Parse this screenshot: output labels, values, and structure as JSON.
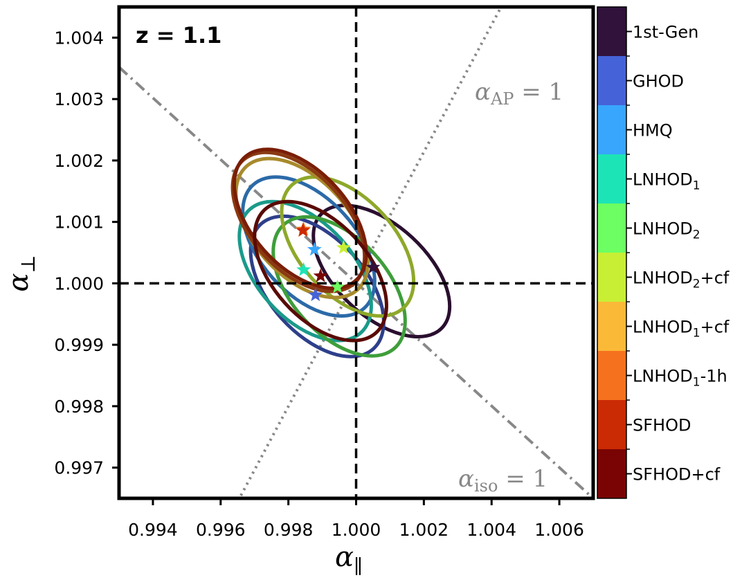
{
  "chart_data": {
    "type": "scatter",
    "annotation": "z = 1.1",
    "xlabel": {
      "symbol": "α",
      "sub": "∥"
    },
    "ylabel": {
      "symbol": "α",
      "sub": "⊥"
    },
    "xlim": [
      0.993,
      1.007
    ],
    "ylim": [
      0.9965,
      1.0045
    ],
    "xticks": [
      "0.994",
      "0.996",
      "0.998",
      "1.000",
      "1.002",
      "1.004",
      "1.006"
    ],
    "yticks": [
      "0.997",
      "0.998",
      "0.999",
      "1.000",
      "1.001",
      "1.002",
      "1.003",
      "1.004"
    ],
    "reference_lines": {
      "alpha_ap": {
        "symbol": "α",
        "sub": "AP",
        "rhs": " = 1",
        "style": "dotted",
        "color": "#888888"
      },
      "alpha_iso": {
        "symbol": "α",
        "sub": "iso",
        "rhs": " = 1",
        "style": "dashdot",
        "color": "#888888"
      }
    },
    "colorbar": [
      {
        "name": "1st-Gen",
        "sub": "",
        "suffix": "",
        "color": "#30123b"
      },
      {
        "name": "GHOD",
        "sub": "",
        "suffix": "",
        "color": "#4562d8"
      },
      {
        "name": "HMQ",
        "sub": "",
        "suffix": "",
        "color": "#38a6fc"
      },
      {
        "name": "LNHOD",
        "sub": "1",
        "suffix": "",
        "color": "#1de4b6"
      },
      {
        "name": "LNHOD",
        "sub": "2",
        "suffix": "",
        "color": "#6cfe62"
      },
      {
        "name": "LNHOD",
        "sub": "2",
        "suffix": "+cf",
        "color": "#c8ef34"
      },
      {
        "name": "LNHOD",
        "sub": "1",
        "suffix": "+cf",
        "color": "#fbb938"
      },
      {
        "name": "LNHOD",
        "sub": "1",
        "suffix": "-1h",
        "color": "#f6711e"
      },
      {
        "name": "SFHOD",
        "sub": "",
        "suffix": "",
        "color": "#ca2a04"
      },
      {
        "name": "SFHOD",
        "sub": "",
        "suffix": "+cf",
        "color": "#7a0403"
      }
    ],
    "series": [
      {
        "name": "1st-Gen",
        "star": [
          1.0005,
          1.00026
        ],
        "ellipse": {
          "cx": 1.00075,
          "cy": 1.0002,
          "rx": 0.00245,
          "ry": 0.00074,
          "angle": 43
        },
        "color": "#2a0f2f"
      },
      {
        "name": "GHOD",
        "star": [
          0.9988,
          0.99981
        ],
        "ellipse": {
          "cx": 0.99885,
          "cy": 0.99995,
          "rx": 0.00248,
          "ry": 0.00078,
          "angle": 48
        },
        "color": "#2e3f8a"
      },
      {
        "name": "HMQ",
        "star": [
          0.99877,
          1.00055
        ],
        "ellipse": {
          "cx": 0.9986,
          "cy": 1.0006,
          "rx": 0.00245,
          "ry": 0.00078,
          "angle": 48
        },
        "color": "#2b6aa8"
      },
      {
        "name": "LNHOD1",
        "star": [
          0.99845,
          1.00022
        ],
        "ellipse": {
          "cx": 0.9985,
          "cy": 1.0002,
          "rx": 0.00245,
          "ry": 0.00078,
          "angle": 48
        },
        "color": "#1a9a8a"
      },
      {
        "name": "LNHOD2",
        "star": [
          0.99945,
          0.99994
        ],
        "ellipse": {
          "cx": 0.9995,
          "cy": 0.99995,
          "rx": 0.00245,
          "ry": 0.00078,
          "angle": 48
        },
        "color": "#3e9e3a"
      },
      {
        "name": "LNHOD2+cf",
        "star": [
          0.99963,
          1.00058
        ],
        "ellipse": {
          "cx": 0.99975,
          "cy": 1.0006,
          "rx": 0.00245,
          "ry": 0.00078,
          "angle": 48
        },
        "color": "#8ea82a"
      },
      {
        "name": "LNHOD1+cf",
        "star": [
          0.99843,
          1.00087
        ],
        "ellipse": {
          "cx": 0.9984,
          "cy": 1.0009,
          "rx": 0.00245,
          "ry": 0.00078,
          "angle": 48
        },
        "color": "#a88a2c"
      },
      {
        "name": "LNHOD1-1h",
        "star": [
          0.99845,
          1.00088
        ],
        "ellipse": {
          "cx": 0.9983,
          "cy": 1.001,
          "rx": 0.00245,
          "ry": 0.00078,
          "angle": 48
        },
        "color": "#8a3a12"
      },
      {
        "name": "SFHOD",
        "star": [
          0.99843,
          1.00086
        ],
        "ellipse": {
          "cx": 0.99835,
          "cy": 1.00105,
          "rx": 0.00245,
          "ry": 0.00078,
          "angle": 48
        },
        "color": "#7a1e06"
      },
      {
        "name": "SFHOD+cf",
        "star": [
          0.99895,
          1.00012
        ],
        "ellipse": {
          "cx": 0.99895,
          "cy": 1.0002,
          "rx": 0.00245,
          "ry": 0.00078,
          "angle": 48
        },
        "color": "#5a0a05"
      }
    ]
  }
}
